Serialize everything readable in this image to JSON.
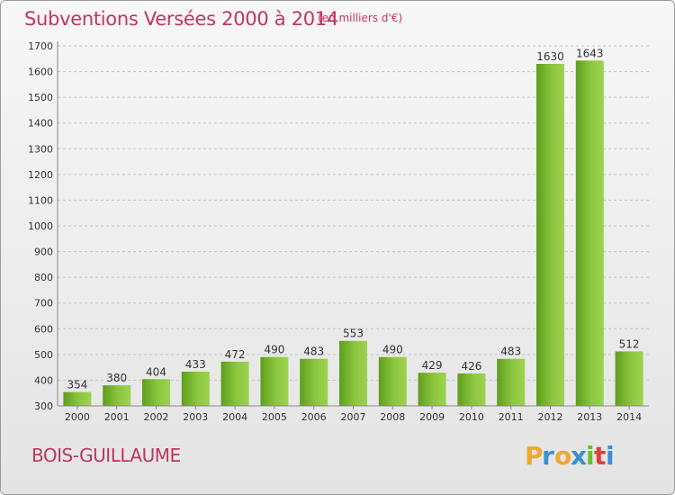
{
  "header": {
    "title": "Subventions Versées 2000 à 2014",
    "unit_note": "(en milliers d'€)"
  },
  "footer": {
    "commune": "BOIS-GUILLAUME",
    "logo_text": "Proxiti"
  },
  "colors": {
    "accent": "#c0365b",
    "bar_light": "#9dd24f",
    "bar_dark": "#5e9e1a"
  },
  "chart_data": {
    "type": "bar",
    "title": "Subventions Versées 2000 à 2014",
    "subtitle": "(en milliers d'€)",
    "xlabel": "",
    "ylabel": "",
    "categories": [
      "2000",
      "2001",
      "2002",
      "2003",
      "2004",
      "2005",
      "2006",
      "2007",
      "2008",
      "2009",
      "2010",
      "2011",
      "2012",
      "2013",
      "2014"
    ],
    "values": [
      354,
      380,
      404,
      433,
      472,
      490,
      483,
      553,
      490,
      429,
      426,
      483,
      1630,
      1643,
      512
    ],
    "ylim": [
      300,
      1700
    ],
    "yticks": [
      300,
      400,
      500,
      600,
      700,
      800,
      900,
      1000,
      1100,
      1200,
      1300,
      1400,
      1500,
      1600,
      1700
    ],
    "grid": "horizontal dashed",
    "legend": "none"
  }
}
